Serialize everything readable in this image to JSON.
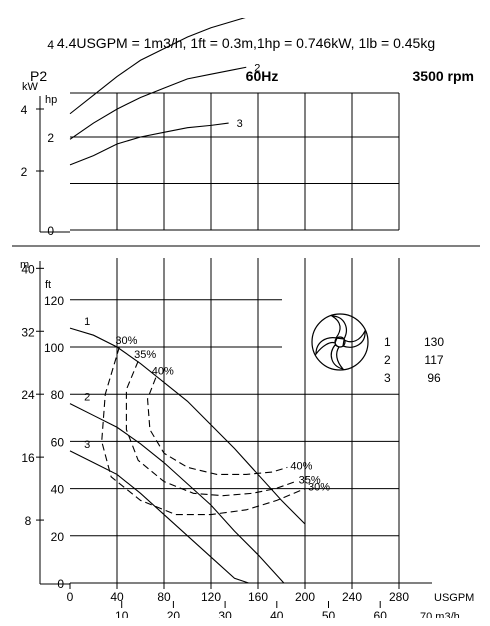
{
  "header": {
    "conversion_note": "4.4USGPM = 1m3/h, 1ft = 0.3m,1hp = 0.746kW, 1lb = 0.45kg",
    "power_label": "P2",
    "frequency": "60Hz",
    "speed": "3500 rpm"
  },
  "legend": {
    "items": [
      {
        "curve": "1",
        "value": "130"
      },
      {
        "curve": "2",
        "value": "117"
      },
      {
        "curve": "3",
        "value": "96"
      }
    ]
  },
  "chart_data": [
    {
      "type": "line",
      "title": "",
      "x_unit_usgpm": "USGPM",
      "x_unit_m3h": "70 m3/h",
      "y_unit_kw": "kW",
      "y_unit_hp": "hp",
      "x_ticks_usgpm": [
        "0",
        "40",
        "80",
        "120",
        "160",
        "200",
        "240",
        "280"
      ],
      "x_ticks_m3h": [
        "10",
        "20",
        "30",
        "40",
        "50",
        "60"
      ],
      "y_ticks_kw": [
        "2",
        "4"
      ],
      "y_ticks_hp": [
        "0",
        "2",
        "4"
      ],
      "xlim_usgpm": [
        0,
        320
      ],
      "ylim_hp": [
        0,
        5.4
      ],
      "series": [
        {
          "name": "1",
          "x": [
            0,
            20,
            40,
            60,
            80,
            100,
            120,
            140,
            160,
            175
          ],
          "y": [
            2.5,
            2.9,
            3.3,
            3.65,
            3.9,
            4.15,
            4.35,
            4.5,
            4.65,
            4.8
          ]
        },
        {
          "name": "2",
          "x": [
            0,
            20,
            40,
            60,
            80,
            100,
            120,
            140,
            150
          ],
          "y": [
            1.95,
            2.3,
            2.6,
            2.85,
            3.05,
            3.25,
            3.35,
            3.45,
            3.5
          ]
        },
        {
          "name": "3",
          "x": [
            0,
            20,
            40,
            60,
            80,
            100,
            120,
            135
          ],
          "y": [
            1.4,
            1.6,
            1.85,
            2.0,
            2.1,
            2.2,
            2.25,
            2.3
          ]
        }
      ]
    },
    {
      "type": "line",
      "title": "",
      "y_unit_m": "m",
      "y_unit_ft": "ft",
      "y_ticks_m": [
        "8",
        "16",
        "24",
        "32",
        "40"
      ],
      "y_ticks_ft": [
        "0",
        "20",
        "40",
        "60",
        "80",
        "100",
        "120"
      ],
      "xlim_usgpm": [
        0,
        320
      ],
      "ylim_ft": [
        0,
        136
      ],
      "series": [
        {
          "name": "1",
          "x": [
            0,
            20,
            40,
            60,
            80,
            100,
            120,
            140,
            160,
            180,
            200
          ],
          "y": [
            108,
            105,
            100,
            93,
            85,
            77,
            67,
            57,
            46,
            35,
            25
          ]
        },
        {
          "name": "2",
          "x": [
            0,
            20,
            40,
            60,
            80,
            100,
            120,
            140,
            160,
            182
          ],
          "y": [
            76,
            71,
            66,
            59,
            51,
            42,
            33,
            22,
            12,
            0
          ]
        },
        {
          "name": "3",
          "x": [
            0,
            20,
            40,
            60,
            80,
            100,
            120,
            140,
            152
          ],
          "y": [
            56,
            51,
            46,
            38,
            29,
            20,
            11,
            2,
            0
          ]
        }
      ],
      "efficiency_curves": [
        {
          "label": "30%",
          "label_right": "30%",
          "x": [
            42,
            30,
            27,
            35,
            60,
            90,
            120,
            150,
            176,
            200
          ],
          "y": [
            100,
            80,
            60,
            45,
            35,
            29,
            29,
            31,
            35,
            40
          ]
        },
        {
          "label": "35%",
          "label_right": "35%",
          "x": [
            58,
            48,
            48,
            58,
            80,
            105,
            130,
            155,
            175,
            192
          ],
          "y": [
            94,
            82,
            65,
            52,
            43,
            38,
            37,
            38,
            40,
            43
          ]
        },
        {
          "label": "40%",
          "label_right": "40%",
          "x": [
            73,
            66,
            68,
            80,
            100,
            125,
            150,
            172,
            185
          ],
          "y": [
            87,
            78,
            65,
            55,
            49,
            46,
            46,
            47,
            49
          ]
        }
      ]
    }
  ]
}
